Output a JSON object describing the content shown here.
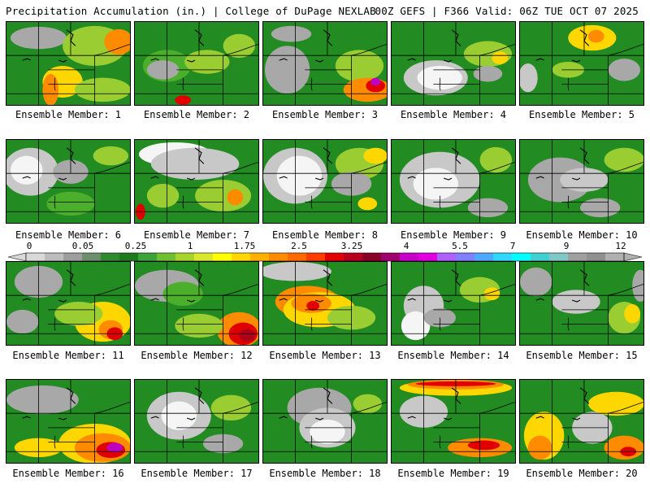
{
  "header": {
    "title": "Precipitation Accumulation (in.) | College of DuPage NEXLAB",
    "run_info": "00Z GEFS | F366 Valid: 06Z TUE OCT 07 2025"
  },
  "colorbar": {
    "labels": [
      "0",
      "0.05",
      "0.25",
      "1",
      "1.75",
      "2.5",
      "3.25",
      "4",
      "5.5",
      "7",
      "9",
      "12"
    ],
    "colors": [
      "#d9d9d9",
      "#bdbdbd",
      "#9e9e9e",
      "#6e8f6e",
      "#2f8a2f",
      "#1f7a1f",
      "#3aa43a",
      "#6fbf2f",
      "#a6d42a",
      "#d9e82a",
      "#ffff00",
      "#ffd700",
      "#ffb000",
      "#ff8c00",
      "#ff6a00",
      "#ff3c00",
      "#e00000",
      "#b8001e",
      "#8b0028",
      "#a0006e",
      "#c800c8",
      "#e000e0",
      "#b060ff",
      "#7f7fff",
      "#4fa8ff",
      "#2fd8ff",
      "#00ffff",
      "#40d0d0",
      "#80c8c8",
      "#a0a0a0",
      "#909090",
      "#b0b0b0"
    ]
  },
  "panels": [
    {
      "caption": "Ensemble Member: 1"
    },
    {
      "caption": "Ensemble Member: 2"
    },
    {
      "caption": "Ensemble Member: 3"
    },
    {
      "caption": "Ensemble Member: 4"
    },
    {
      "caption": "Ensemble Member: 5"
    },
    {
      "caption": "Ensemble Member: 6"
    },
    {
      "caption": "Ensemble Member: 7"
    },
    {
      "caption": "Ensemble Member: 8"
    },
    {
      "caption": "Ensemble Member: 9"
    },
    {
      "caption": "Ensemble Member: 10"
    },
    {
      "caption": "Ensemble Member: 11"
    },
    {
      "caption": "Ensemble Member: 12"
    },
    {
      "caption": "Ensemble Member: 13"
    },
    {
      "caption": "Ensemble Member: 14"
    },
    {
      "caption": "Ensemble Member: 15"
    },
    {
      "caption": "Ensemble Member: 16"
    },
    {
      "caption": "Ensemble Member: 17"
    },
    {
      "caption": "Ensemble Member: 18"
    },
    {
      "caption": "Ensemble Member: 19"
    },
    {
      "caption": "Ensemble Member: 20"
    }
  ]
}
